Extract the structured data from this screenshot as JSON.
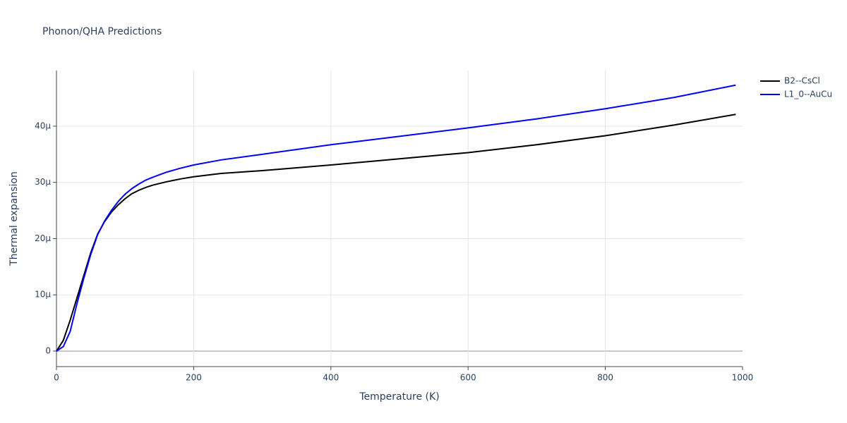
{
  "chart_data": {
    "type": "line",
    "title": "Phonon/QHA Predictions",
    "x_label": "Temperature (K)",
    "y_label": "Thermal expansion",
    "x": [
      0,
      10,
      20,
      30,
      40,
      50,
      60,
      70,
      80,
      90,
      100,
      110,
      120,
      130,
      140,
      160,
      180,
      200,
      240,
      300,
      400,
      500,
      600,
      700,
      800,
      900,
      990
    ],
    "series": [
      {
        "name": "B2--CsCl",
        "color": "#000000",
        "values": [
          0,
          1.9e-06,
          5.5e-06,
          9.5e-06,
          1.35e-05,
          1.75e-05,
          2.08e-05,
          2.3e-05,
          2.47e-05,
          2.6e-05,
          2.71e-05,
          2.8e-05,
          2.86e-05,
          2.91e-05,
          2.95e-05,
          3.01e-05,
          3.06e-05,
          3.1e-05,
          3.16e-05,
          3.21e-05,
          3.31e-05,
          3.42e-05,
          3.53e-05,
          3.67e-05,
          3.83e-05,
          4.02e-05,
          4.21e-05
        ]
      },
      {
        "name": "L1_0--AuCu",
        "color": "#0000ff",
        "values": [
          0,
          8e-07,
          3.5e-06,
          8.5e-06,
          1.3e-05,
          1.72e-05,
          2.07e-05,
          2.31e-05,
          2.5e-05,
          2.66e-05,
          2.79e-05,
          2.89e-05,
          2.97e-05,
          3.04e-05,
          3.09e-05,
          3.18e-05,
          3.25e-05,
          3.31e-05,
          3.4e-05,
          3.5e-05,
          3.67e-05,
          3.82e-05,
          3.97e-05,
          4.13e-05,
          4.31e-05,
          4.51e-05,
          4.73e-05
        ]
      }
    ],
    "xlim": [
      0,
      1000
    ],
    "xticks": [
      0,
      200,
      400,
      600,
      800,
      1000
    ],
    "ylim": [
      -2.76e-06,
      4.99e-05
    ],
    "yticks": [
      0,
      {
        "value": 1e-05,
        "label": "10μ"
      },
      {
        "value": 2e-05,
        "label": "20μ"
      },
      {
        "value": 3e-05,
        "label": "30μ"
      },
      {
        "value": 4e-05,
        "label": "40μ"
      }
    ],
    "grid": true,
    "legend": "outside-right"
  }
}
